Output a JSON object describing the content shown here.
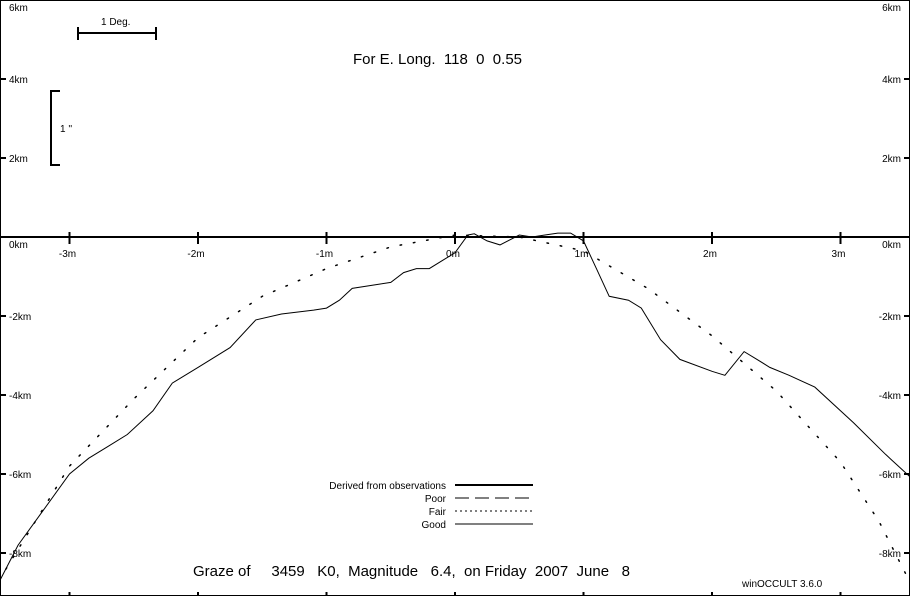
{
  "header": {
    "longitude_label": "For E. Long.  118  0  0.55"
  },
  "scale_bars": {
    "horizontal_label": "1 Deg.",
    "vertical_label": "1 ''"
  },
  "footer": {
    "title": "Graze of     3459   K0,  Magnitude   6.4,  on Friday  2007  June   8",
    "software": "winOCCULT 3.6.0"
  },
  "legend": {
    "items": [
      {
        "label": "Derived from observations",
        "style": "thick"
      },
      {
        "label": "Poor",
        "style": "dashed"
      },
      {
        "label": "Fair",
        "style": "dotted"
      },
      {
        "label": "Good",
        "style": "solid"
      }
    ]
  },
  "chart_data": {
    "type": "line",
    "title": "Graze of     3459   K0,  Magnitude   6.4,  on Friday  2007  June   8",
    "xlim": [
      -3.55,
      3.55
    ],
    "ylim": [
      -9.0,
      6.0
    ],
    "x_ticks": [
      -3,
      -2,
      -1,
      0,
      1,
      2,
      3
    ],
    "x_tick_labels": [
      "-3m",
      "-2m",
      "-1m",
      "0m",
      "1m",
      "2m",
      "3m"
    ],
    "y_ticks": [
      6,
      4,
      2,
      0,
      -2,
      -4,
      -6,
      -8
    ],
    "y_tick_labels": [
      "6km",
      "4km",
      "2km",
      "0km",
      "-2km",
      "-4km",
      "-6km",
      "-8km"
    ],
    "grid": false,
    "legend_position": "bottom-center",
    "series": [
      {
        "style": "solid",
        "points": [
          [
            -3.55,
            -8.75
          ],
          [
            -3.4,
            -7.8
          ],
          [
            -3.2,
            -6.9
          ],
          [
            -3.0,
            -6.0
          ],
          [
            -2.85,
            -5.6
          ],
          [
            -2.7,
            -5.3
          ],
          [
            -2.55,
            -5.0
          ],
          [
            -2.35,
            -4.4
          ],
          [
            -2.2,
            -3.7
          ],
          [
            -2.0,
            -3.3
          ],
          [
            -1.75,
            -2.8
          ],
          [
            -1.55,
            -2.1
          ],
          [
            -1.35,
            -1.95
          ],
          [
            -1.1,
            -1.85
          ],
          [
            -1.0,
            -1.8
          ],
          [
            -0.9,
            -1.6
          ],
          [
            -0.8,
            -1.3
          ],
          [
            -0.6,
            -1.2
          ],
          [
            -0.5,
            -1.15
          ],
          [
            -0.4,
            -0.9
          ],
          [
            -0.3,
            -0.8
          ],
          [
            -0.2,
            -0.8
          ],
          [
            -0.1,
            -0.6
          ],
          [
            0.0,
            -0.4
          ],
          [
            0.1,
            0.05
          ],
          [
            0.15,
            0.08
          ],
          [
            0.25,
            -0.1
          ],
          [
            0.35,
            -0.2
          ],
          [
            0.5,
            0.05
          ],
          [
            0.6,
            0.0
          ],
          [
            0.7,
            0.05
          ],
          [
            0.8,
            0.1
          ],
          [
            0.9,
            0.1
          ],
          [
            1.0,
            -0.1
          ],
          [
            1.1,
            -0.8
          ],
          [
            1.2,
            -1.5
          ],
          [
            1.35,
            -1.6
          ],
          [
            1.45,
            -1.8
          ],
          [
            1.6,
            -2.6
          ],
          [
            1.75,
            -3.1
          ],
          [
            2.0,
            -3.4
          ],
          [
            2.1,
            -3.5
          ],
          [
            2.25,
            -2.9
          ],
          [
            2.35,
            -3.1
          ],
          [
            2.45,
            -3.3
          ],
          [
            2.6,
            -3.5
          ],
          [
            2.8,
            -3.8
          ],
          [
            3.1,
            -4.7
          ],
          [
            3.35,
            -5.5
          ],
          [
            3.55,
            -6.1
          ]
        ]
      },
      {
        "style": "dotted",
        "points": [
          [
            -3.55,
            -8.7
          ],
          [
            -3.0,
            -5.8
          ],
          [
            -2.5,
            -4.1
          ],
          [
            -2.0,
            -2.55
          ],
          [
            -1.5,
            -1.5
          ],
          [
            -1.0,
            -0.8
          ],
          [
            -0.5,
            -0.25
          ],
          [
            0.0,
            0.05
          ],
          [
            0.5,
            0.0
          ],
          [
            1.0,
            -0.35
          ],
          [
            1.5,
            -1.3
          ],
          [
            2.0,
            -2.5
          ],
          [
            2.5,
            -3.9
          ],
          [
            3.0,
            -5.7
          ],
          [
            3.3,
            -7.2
          ],
          [
            3.55,
            -8.8
          ]
        ]
      }
    ]
  }
}
